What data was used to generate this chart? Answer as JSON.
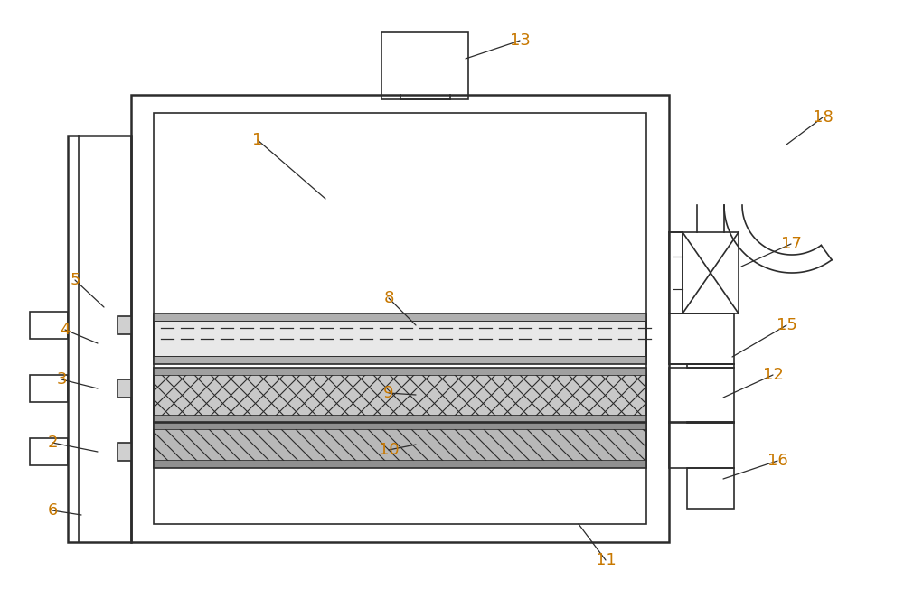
{
  "bg_color": "#ffffff",
  "line_color": "#2c2c2c",
  "label_color": "#c87800",
  "fig_width": 10.0,
  "fig_height": 6.63,
  "dpi": 100
}
